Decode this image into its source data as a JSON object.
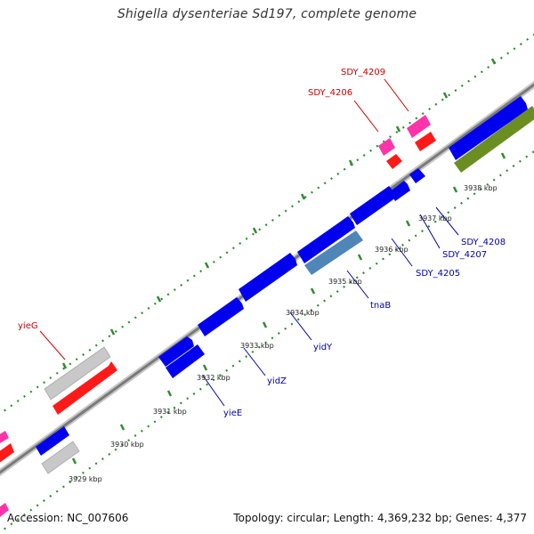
{
  "title": "Shigella dysenteriae Sd197, complete genome",
  "footer": {
    "accession": "Accession: NC_007606",
    "summary": "Topology: circular; Length: 4,369,232 bp; Genes: 4,377"
  },
  "colors": {
    "backbone": "#8c8c8c",
    "tick": "#2e8b2e",
    "forward_gene": "#0000ee",
    "reverse_gene": "#0000ee",
    "rRNA": "#ff1a1a",
    "tRNA": "#ff33aa",
    "pseudogene": "#c8c8c8",
    "misc": "#4f86b8",
    "region": "#6b8e23",
    "label_red": "#cc0000",
    "label_blue": "#0000aa",
    "kbp_text": "#222222"
  },
  "kbp_labels": [
    "3929 kbp",
    "3930 kbp",
    "3931 kbp",
    "3932 kbp",
    "3933 kbp",
    "3934 kbp",
    "3935 kbp",
    "3936 kbp",
    "3937 kbp",
    "3938 kbp"
  ],
  "gene_labels": {
    "red": [
      "yieG",
      "SDY_4206",
      "SDY_4209"
    ],
    "blue": [
      "yieE",
      "yidZ",
      "yidY",
      "tnaB",
      "SDY_4205",
      "SDY_4207",
      "SDY_4208"
    ]
  }
}
